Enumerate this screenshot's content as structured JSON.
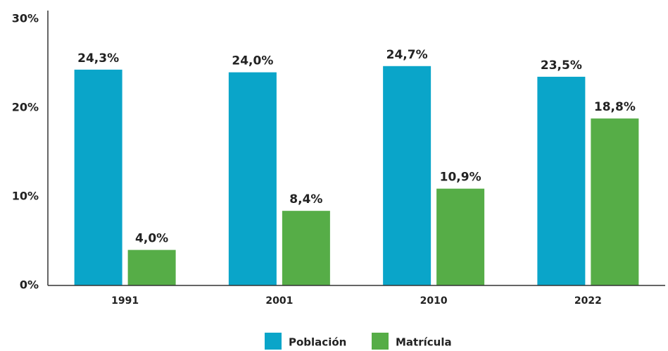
{
  "chart_data": {
    "type": "bar",
    "categories": [
      "1991",
      "2001",
      "2010",
      "2022"
    ],
    "series": [
      {
        "name": "Población",
        "color": "#0aa5c9",
        "values": [
          24.3,
          24.0,
          24.7,
          23.5
        ],
        "value_labels": [
          "24,3%",
          "24,0%",
          "24,7%",
          "23,5%"
        ]
      },
      {
        "name": "Matrícula",
        "color": "#56ad47",
        "values": [
          4.0,
          8.4,
          10.9,
          18.8
        ],
        "value_labels": [
          "4,0%",
          "8,4%",
          "10,9%",
          "18,8%"
        ]
      }
    ],
    "ylim": [
      0,
      30
    ],
    "yticks": [
      {
        "value": 0,
        "label": "0%"
      },
      {
        "value": 10,
        "label": "10%"
      },
      {
        "value": 20,
        "label": "20%"
      },
      {
        "value": 30,
        "label": "30%"
      }
    ],
    "grid": false,
    "legend": "bottom"
  }
}
